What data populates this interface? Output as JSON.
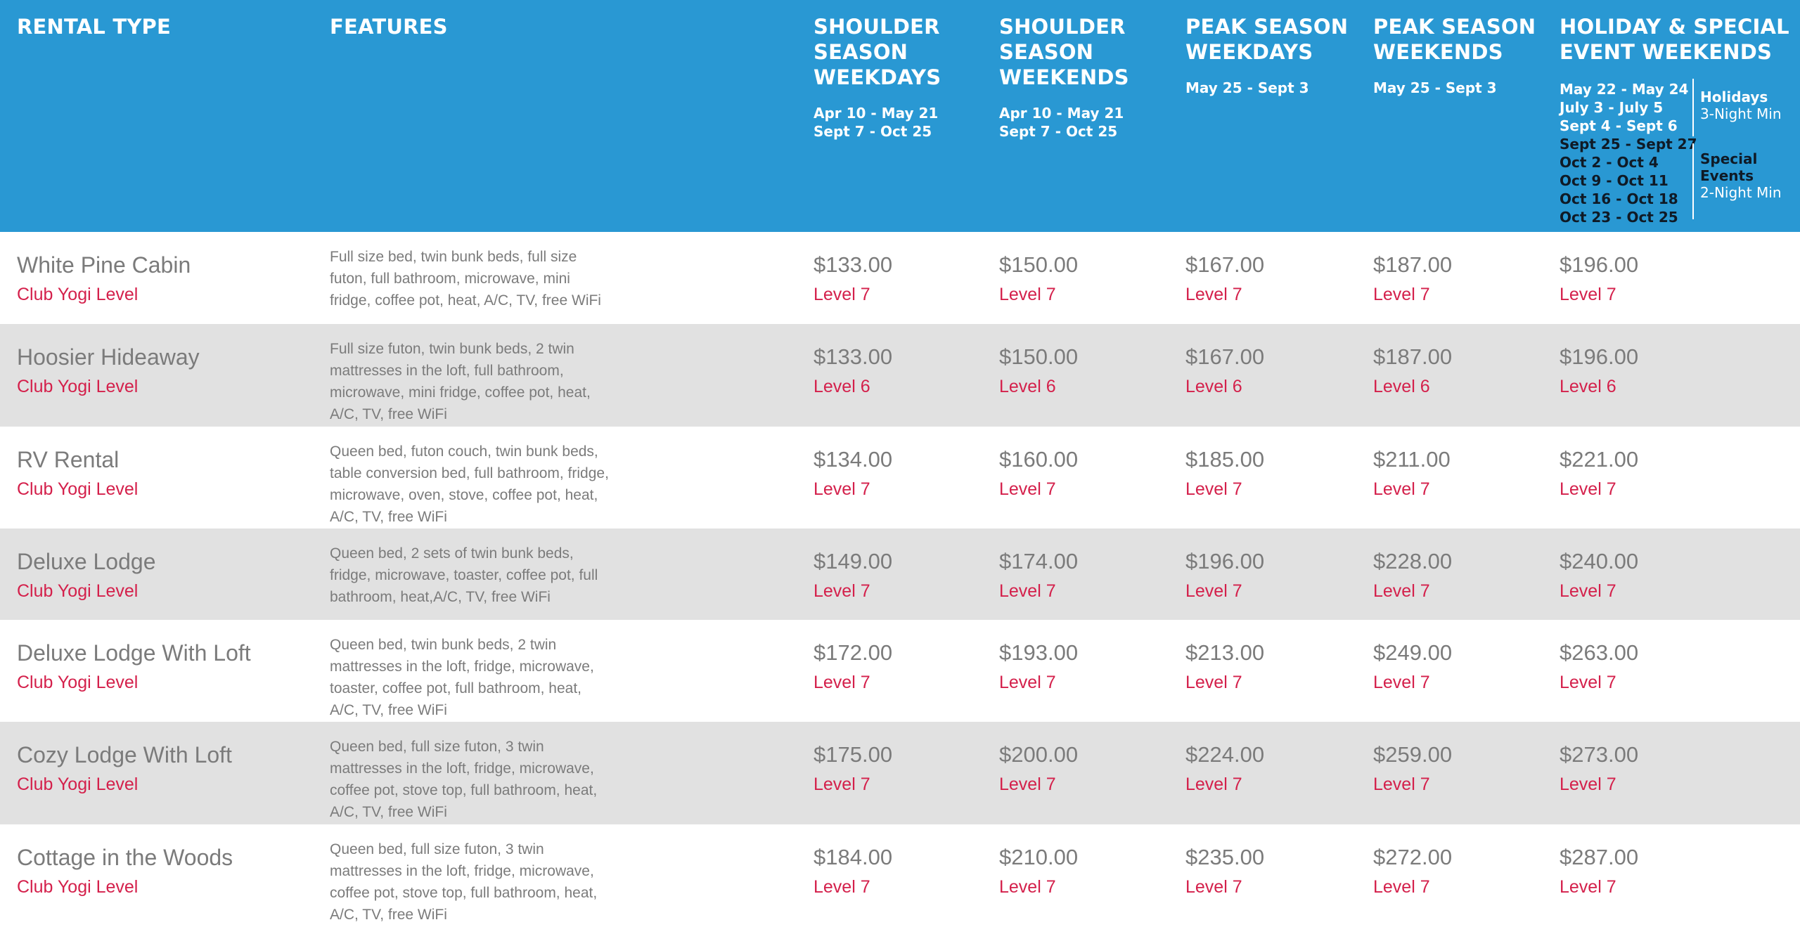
{
  "header": {
    "rental_type": "RENTAL TYPE",
    "features": "FEATURES",
    "columns": [
      {
        "title": "SHOULDER SEASON WEEKDAYS",
        "dates": [
          "Apr 10 - May 21",
          "Sept 7 - Oct 25"
        ]
      },
      {
        "title": "SHOULDER SEASON WEEKENDS",
        "dates": [
          "Apr 10 - May 21",
          "Sept 7 - Oct 25"
        ]
      },
      {
        "title": "PEAK SEASON WEEKDAYS",
        "dates": [
          "May 25 - Sept 3"
        ]
      },
      {
        "title": "PEAK SEASON WEEKENDS",
        "dates": [
          "May 25 - Sept 3"
        ]
      },
      {
        "title": "HOLIDAY & SPECIAL EVENT WEEKENDS",
        "dates": []
      }
    ],
    "holiday_dates": [
      "May 22 - May 24",
      "July 3 - July 5",
      "Sept 4 - Sept 6"
    ],
    "special_event_dates": [
      "Sept 25 - Sept 27",
      "Oct 2 - Oct 4",
      "Oct 9 - Oct 11",
      "Oct 16 - Oct 18",
      "Oct 23 - Oct 25"
    ],
    "holidays_note": {
      "label": "Holidays",
      "min": "3-Night Min"
    },
    "special_note": {
      "label": "Special Events",
      "min": "2-Night Min"
    }
  },
  "rows": [
    {
      "name": "White Pine Cabin",
      "level": "Club Yogi Level",
      "features": "Full size bed, twin bunk beds, full size futon, full bathroom, microwave, mini fridge, coffee pot, heat, A/C, TV, free WiFi",
      "prices": [
        {
          "price": "$133.00",
          "level": "Level 7"
        },
        {
          "price": "$150.00",
          "level": "Level 7"
        },
        {
          "price": "$167.00",
          "level": "Level 7"
        },
        {
          "price": "$187.00",
          "level": "Level 7"
        },
        {
          "price": "$196.00",
          "level": "Level 7"
        }
      ]
    },
    {
      "name": "Hoosier Hideaway",
      "level": "Club Yogi Level",
      "features": "Full size futon, twin bunk beds, 2 twin mattresses in the loft, full bathroom, microwave, mini fridge, coffee pot, heat, A/C, TV, free WiFi",
      "prices": [
        {
          "price": "$133.00",
          "level": "Level 6"
        },
        {
          "price": "$150.00",
          "level": "Level 6"
        },
        {
          "price": "$167.00",
          "level": "Level 6"
        },
        {
          "price": "$187.00",
          "level": "Level 6"
        },
        {
          "price": "$196.00",
          "level": "Level 6"
        }
      ]
    },
    {
      "name": "RV Rental",
      "level": "Club Yogi Level",
      "features": "Queen bed, futon couch, twin bunk beds, table conversion bed, full bathroom, fridge, microwave, oven, stove, coffee pot, heat, A/C, TV, free WiFi",
      "prices": [
        {
          "price": "$134.00",
          "level": "Level 7"
        },
        {
          "price": "$160.00",
          "level": "Level 7"
        },
        {
          "price": "$185.00",
          "level": "Level 7"
        },
        {
          "price": "$211.00",
          "level": "Level 7"
        },
        {
          "price": "$221.00",
          "level": "Level 7"
        }
      ]
    },
    {
      "name": "Deluxe Lodge",
      "level": "Club Yogi Level",
      "features": "Queen bed, 2 sets of twin bunk beds, fridge, microwave, toaster, coffee pot, full bathroom, heat,A/C, TV, free WiFi",
      "prices": [
        {
          "price": "$149.00",
          "level": "Level 7"
        },
        {
          "price": "$174.00",
          "level": "Level 7"
        },
        {
          "price": "$196.00",
          "level": "Level 7"
        },
        {
          "price": "$228.00",
          "level": "Level 7"
        },
        {
          "price": "$240.00",
          "level": "Level 7"
        }
      ]
    },
    {
      "name": "Deluxe Lodge With Loft",
      "level": "Club Yogi Level",
      "features": "Queen bed, twin bunk beds, 2 twin mattresses in the loft, fridge, microwave, toaster, coffee pot, full bathroom, heat, A/C, TV, free WiFi",
      "prices": [
        {
          "price": "$172.00",
          "level": "Level 7"
        },
        {
          "price": "$193.00",
          "level": "Level 7"
        },
        {
          "price": "$213.00",
          "level": "Level 7"
        },
        {
          "price": "$249.00",
          "level": "Level 7"
        },
        {
          "price": "$263.00",
          "level": "Level 7"
        }
      ]
    },
    {
      "name": "Cozy Lodge With Loft",
      "level": "Club Yogi Level",
      "features": "Queen bed, full size futon, 3 twin mattresses in the loft, fridge, microwave, coffee pot, stove top, full bathroom, heat, A/C, TV, free WiFi",
      "prices": [
        {
          "price": "$175.00",
          "level": "Level 7"
        },
        {
          "price": "$200.00",
          "level": "Level 7"
        },
        {
          "price": "$224.00",
          "level": "Level 7"
        },
        {
          "price": "$259.00",
          "level": "Level 7"
        },
        {
          "price": "$273.00",
          "level": "Level 7"
        }
      ]
    },
    {
      "name": "Cottage in the Woods",
      "level": "Club Yogi Level",
      "features": "Queen bed, full size futon, 3 twin mattresses in the loft, fridge, microwave, coffee pot, stove top, full bathroom, heat, A/C, TV, free WiFi",
      "prices": [
        {
          "price": "$184.00",
          "level": "Level 7"
        },
        {
          "price": "$210.00",
          "level": "Level 7"
        },
        {
          "price": "$235.00",
          "level": "Level 7"
        },
        {
          "price": "$272.00",
          "level": "Level 7"
        },
        {
          "price": "$287.00",
          "level": "Level 7"
        }
      ]
    }
  ]
}
